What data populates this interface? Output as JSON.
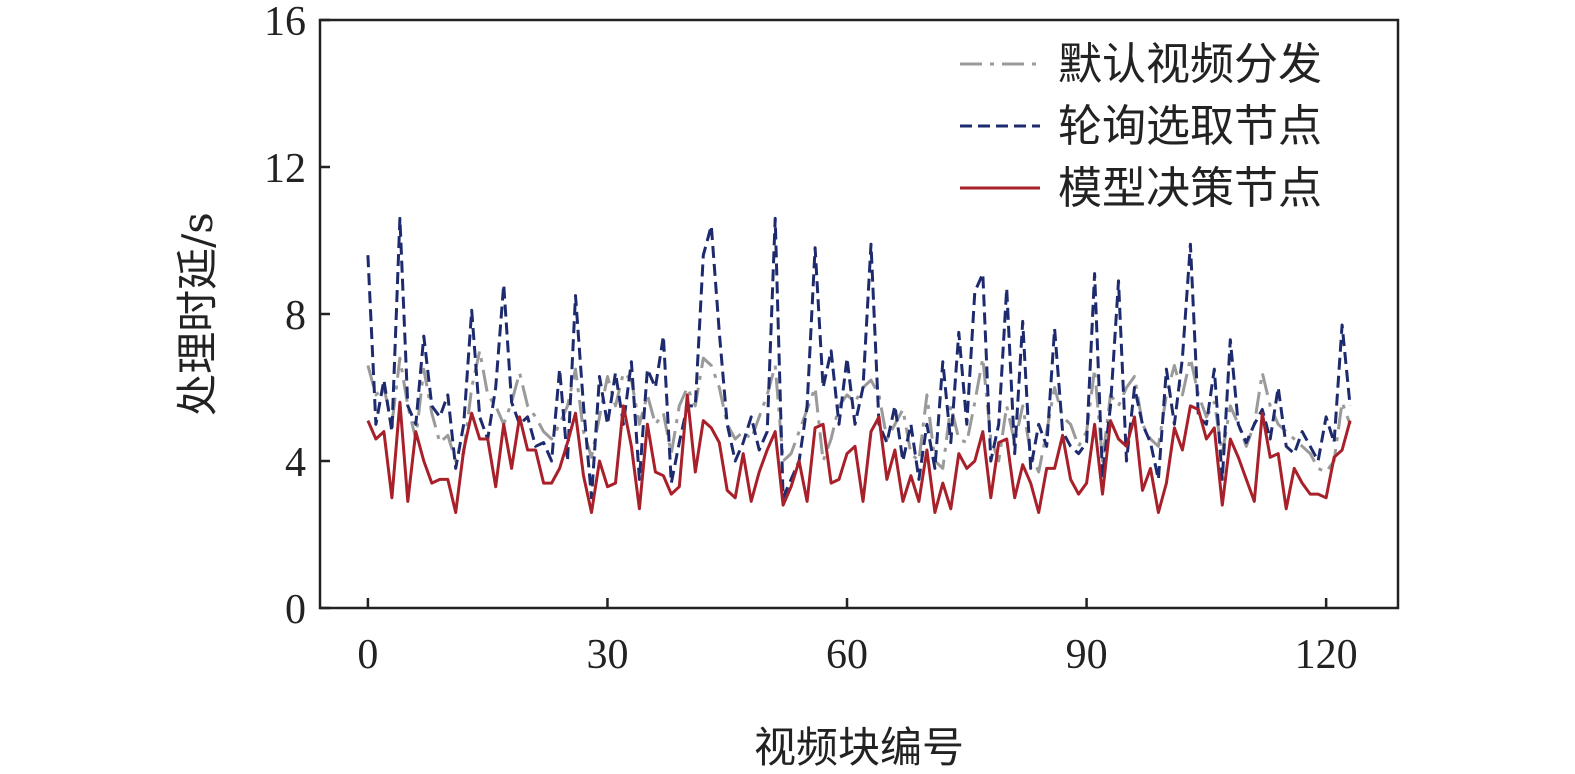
{
  "chart_data": {
    "type": "line",
    "xlabel": "视频块编号",
    "ylabel": "处理时延/s",
    "xlim": [
      -6,
      129
    ],
    "ylim": [
      0,
      16
    ],
    "xticks": [
      0,
      30,
      60,
      90,
      120
    ],
    "yticks": [
      0,
      4,
      8,
      12,
      16
    ],
    "legend_position": "top-right",
    "grid": false,
    "series": [
      {
        "name": "默认视频分发",
        "color": "#9a9a9a",
        "dash": "22 8 4 8",
        "values": [
          6.6,
          5.8,
          6.0,
          5.0,
          6.8,
          5.5,
          4.6,
          6.5,
          5.3,
          4.5,
          4.7,
          4.0,
          4.2,
          6.0,
          7.0,
          5.8,
          5.5,
          5.0,
          5.6,
          6.4,
          5.5,
          5.2,
          4.8,
          4.6,
          5.0,
          5.5,
          6.5,
          4.8,
          4.1,
          5.2,
          6.3,
          5.5,
          6.4,
          6.2,
          5.0,
          5.8,
          5.0,
          5.3,
          4.2,
          5.5,
          6.0,
          5.5,
          6.8,
          6.6,
          6.0,
          5.0,
          4.6,
          4.8,
          4.6,
          5.2,
          5.8,
          6.6,
          4.0,
          4.2,
          4.8,
          5.4,
          6.0,
          4.0,
          4.6,
          5.5,
          5.8,
          5.6,
          6.0,
          6.2,
          5.8,
          4.6,
          5.0,
          5.4,
          4.2,
          4.0,
          5.8,
          4.0,
          3.8,
          5.5,
          4.6,
          4.5,
          5.6,
          6.8,
          4.6,
          4.0,
          5.5,
          4.5,
          5.5,
          4.2,
          3.7,
          4.8,
          6.0,
          5.2,
          5.0,
          4.4,
          4.8,
          6.5,
          4.0,
          5.8,
          5.5,
          6.0,
          6.3,
          5.0,
          4.6,
          4.4,
          5.8,
          6.6,
          5.8,
          6.8,
          5.8,
          5.2,
          5.6,
          4.2,
          5.5,
          5.0,
          4.4,
          5.0,
          6.4,
          5.5,
          5.0,
          4.8,
          4.6,
          4.4,
          4.2,
          3.8,
          3.7,
          4.0,
          5.6,
          5.0
        ]
      },
      {
        "name": "轮询选取节点",
        "color": "#1e2a6e",
        "dash": "12 6",
        "values": [
          9.6,
          5.0,
          6.2,
          4.8,
          10.6,
          5.5,
          5.0,
          7.4,
          5.5,
          5.2,
          5.8,
          3.8,
          5.0,
          8.1,
          5.2,
          4.6,
          6.0,
          8.8,
          5.6,
          5.0,
          5.2,
          4.4,
          4.5,
          4.0,
          6.5,
          4.0,
          8.5,
          5.5,
          3.0,
          6.3,
          5.0,
          6.4,
          5.0,
          6.7,
          3.5,
          6.5,
          6.0,
          7.4,
          3.4,
          4.5,
          5.5,
          5.5,
          9.6,
          10.4,
          7.5,
          5.0,
          4.0,
          4.5,
          5.2,
          4.3,
          4.8,
          10.6,
          3.0,
          3.5,
          4.0,
          5.5,
          9.8,
          6.0,
          7.0,
          5.0,
          6.8,
          5.0,
          6.0,
          9.9,
          5.0,
          4.5,
          5.5,
          4.0,
          5.0,
          3.5,
          5.0,
          3.8,
          6.7,
          4.5,
          7.5,
          5.0,
          8.6,
          9.1,
          4.0,
          5.0,
          8.7,
          4.2,
          7.8,
          3.8,
          5.0,
          4.4,
          7.6,
          4.8,
          4.4,
          4.2,
          4.5,
          9.1,
          3.6,
          5.5,
          8.9,
          4.0,
          6.0,
          5.0,
          4.5,
          3.5,
          6.5,
          5.0,
          6.8,
          9.9,
          5.2,
          5.0,
          6.5,
          3.5,
          7.3,
          5.0,
          4.5,
          5.0,
          5.4,
          4.6,
          6.0,
          4.4,
          4.2,
          4.8,
          4.4,
          4.0,
          5.2,
          4.5,
          7.7,
          5.5
        ]
      },
      {
        "name": "模型决策节点",
        "color": "#a8202a",
        "dash": "",
        "values": [
          5.1,
          4.6,
          4.8,
          3.0,
          5.6,
          2.9,
          4.8,
          4.0,
          3.4,
          3.5,
          3.5,
          2.6,
          4.3,
          5.3,
          4.6,
          4.6,
          3.3,
          5.0,
          3.8,
          5.2,
          4.3,
          4.3,
          3.4,
          3.4,
          3.8,
          4.5,
          5.3,
          3.6,
          2.6,
          4.0,
          3.3,
          3.4,
          5.5,
          4.4,
          2.7,
          5.0,
          3.7,
          3.6,
          3.1,
          3.3,
          5.8,
          3.7,
          5.1,
          4.9,
          4.5,
          3.2,
          3.0,
          4.2,
          2.9,
          3.7,
          4.3,
          4.8,
          2.8,
          3.3,
          4.0,
          2.9,
          4.9,
          5.0,
          3.4,
          3.5,
          4.2,
          4.4,
          2.9,
          4.8,
          5.2,
          3.5,
          4.3,
          2.9,
          3.6,
          2.9,
          4.3,
          2.6,
          3.4,
          2.7,
          4.2,
          3.8,
          4.0,
          4.8,
          3.0,
          4.5,
          4.6,
          3.0,
          3.9,
          3.4,
          2.6,
          3.8,
          3.8,
          4.7,
          3.5,
          3.1,
          3.4,
          5.0,
          3.1,
          5.1,
          4.6,
          4.4,
          5.2,
          3.2,
          3.8,
          2.6,
          3.4,
          4.9,
          4.3,
          5.5,
          5.4,
          4.6,
          4.9,
          2.8,
          4.6,
          4.1,
          3.5,
          2.9,
          5.3,
          4.1,
          4.2,
          2.7,
          3.8,
          3.4,
          3.1,
          3.1,
          3.0,
          4.1,
          4.3,
          5.1
        ]
      }
    ]
  }
}
